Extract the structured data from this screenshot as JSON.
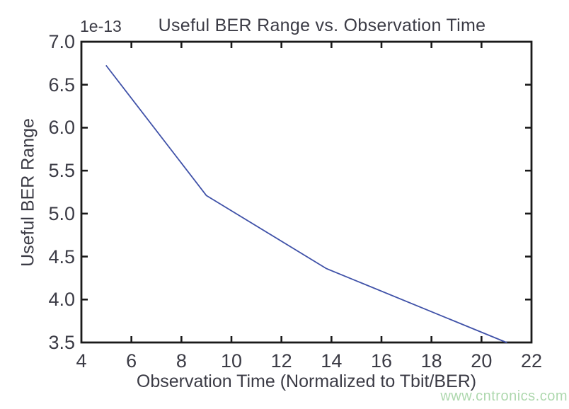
{
  "chart_data": {
    "type": "line",
    "title": "Useful BER Range vs. Observation Time",
    "xlabel": "Observation Time (Normalized to Tbit/BER)",
    "ylabel": "Useful BER Range",
    "y_offset_text": "1e-13",
    "xlim": [
      4,
      22
    ],
    "ylim": [
      3.5,
      7.0
    ],
    "xticks": [
      4,
      6,
      8,
      10,
      12,
      14,
      16,
      18,
      20,
      22
    ],
    "xticklabels": [
      "4",
      "6",
      "8",
      "10",
      "12",
      "14",
      "16",
      "18",
      "20",
      "22"
    ],
    "yticks": [
      7.0,
      6.5,
      6.0,
      5.5,
      5.0,
      4.5,
      4.0,
      3.5
    ],
    "yticklabels": [
      "7.0",
      "6.5",
      "6.0",
      "5.5",
      "5.0",
      "4.5",
      "4.0",
      "3.5"
    ],
    "grid": false,
    "legend": "none",
    "tick_direction": "in",
    "series": [
      {
        "name": "Useful BER Range",
        "x": [
          5,
          9,
          13.8,
          21
        ],
        "y": [
          6.72,
          5.21,
          4.36,
          3.5
        ],
        "units": "1e-13"
      }
    ]
  },
  "watermark": "www.cntronics.com",
  "colors": {
    "line": "#3f51a8",
    "axis": "#1a1a1a",
    "text": "#3b3b45",
    "watermark": "#aed8ae",
    "background": "#ffffff"
  }
}
